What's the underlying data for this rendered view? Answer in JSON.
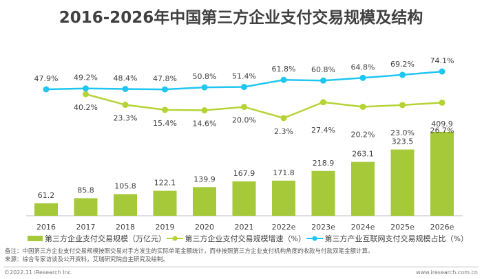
{
  "title": "2016-2026年中国第三方企业支付交易规模及结构",
  "chart_data": {
    "type": "bar",
    "title": "2016-2026年中国第三方企业支付交易规模及结构",
    "categories": [
      "2016",
      "2017",
      "2018",
      "2019",
      "2020",
      "2021",
      "2022e",
      "2023e",
      "2024e",
      "2025e",
      "2026e"
    ],
    "series": [
      {
        "name": "第三方企业支付交易规模（万亿元）",
        "type": "bar",
        "color": "#a6c93a",
        "values": [
          61.2,
          85.8,
          105.8,
          122.1,
          139.9,
          167.9,
          171.8,
          218.9,
          263.1,
          323.5,
          409.9
        ],
        "labels": [
          "61.2",
          "85.8",
          "105.8",
          "122.1",
          "139.9",
          "167.9",
          "171.8",
          "218.9",
          "263.1",
          "323.5",
          "409.9"
        ]
      },
      {
        "name": "第三方企业支付交易规模增速（%）",
        "type": "line",
        "color": "#b5d334",
        "values": [
          null,
          40.2,
          23.3,
          15.4,
          14.6,
          20.0,
          2.3,
          27.4,
          20.2,
          23.0,
          26.7
        ],
        "labels": [
          "",
          "40.2%",
          "23.3%",
          "15.4%",
          "14.6%",
          "20.0%",
          "2.3%",
          "27.4%",
          "20.2%",
          "23.0%",
          "26.7%"
        ]
      },
      {
        "name": "第三方产业互联网支付交易规模占比（%）",
        "type": "line",
        "color": "#1fc6f2",
        "values": [
          47.9,
          49.2,
          48.4,
          47.8,
          50.8,
          51.4,
          61.8,
          60.8,
          64.8,
          69.2,
          74.1
        ],
        "labels": [
          "47.9%",
          "49.2%",
          "48.4%",
          "47.8%",
          "50.8%",
          "51.4%",
          "61.8%",
          "60.8%",
          "64.8%",
          "69.2%",
          "74.1%"
        ]
      }
    ],
    "legend": "bottom"
  },
  "notes": [
    "备注：中国第三方企业支付交易规模按照交易对手方发生的实际单笔金额统计，而非按照第三方企业支付机构角度的收款与付款双笔金额计算。",
    "来源：综合专家访谈及公开资料，艾瑞研究院自主研究及绘制。"
  ],
  "footer": {
    "left": "©2022.11 iResearch Inc.",
    "right": "www.iresearch.com.cn"
  }
}
